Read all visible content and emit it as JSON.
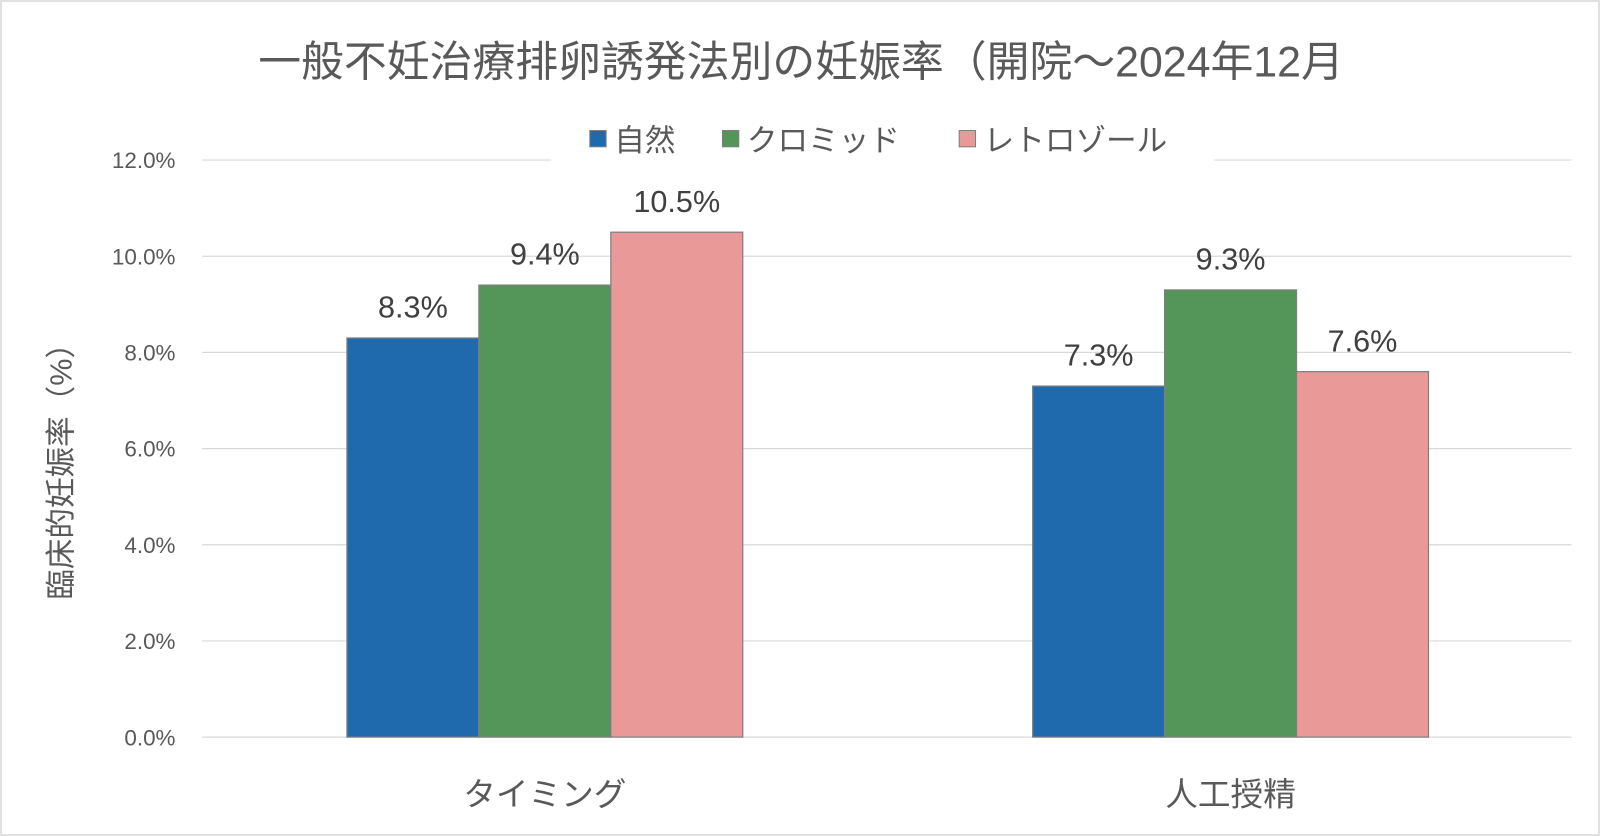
{
  "chart_data": {
    "type": "bar",
    "title": "一般不妊治療排卵誘発法別の妊娠率（開院～2024年12月",
    "xlabel": "",
    "ylabel": "臨床的妊娠率（%）",
    "ylim": [
      0,
      12
    ],
    "yticks": [
      "0.0%",
      "2.0%",
      "4.0%",
      "6.0%",
      "8.0%",
      "10.0%",
      "12.0%"
    ],
    "grid": true,
    "legend_position": "top",
    "categories": [
      "タイミング",
      "人工授精"
    ],
    "series": [
      {
        "name": "自然",
        "color": "#1f6aad",
        "values": [
          8.3,
          7.3
        ],
        "labels": [
          "8.3%",
          "7.3%"
        ]
      },
      {
        "name": "クロミッド",
        "color": "#54955a",
        "values": [
          9.4,
          9.3
        ],
        "labels": [
          "9.4%",
          "9.3%"
        ]
      },
      {
        "name": "レトロゾール",
        "color": "#ea9999",
        "values": [
          10.5,
          7.6
        ],
        "labels": [
          "10.5%",
          "7.6%"
        ]
      }
    ]
  }
}
